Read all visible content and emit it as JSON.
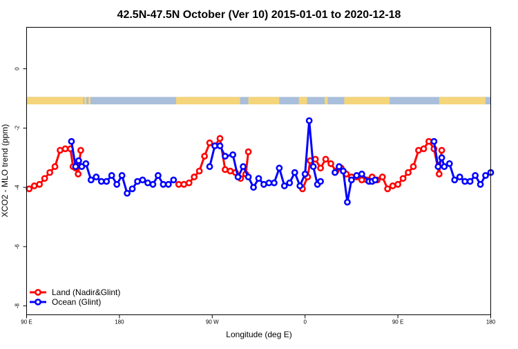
{
  "chart_data": {
    "type": "line",
    "title": "42.5N-47.5N October (Ver 10)   2015-01-01 to 2020-12-18",
    "xlabel": "Longitude (deg E)",
    "ylabel": "XCO2 - MLO trend (ppm)",
    "xlim": [
      90,
      540
    ],
    "ylim": [
      -8.3,
      1.4
    ],
    "x_ticks": [
      {
        "value": 90,
        "label": "90 E"
      },
      {
        "value": 180,
        "label": "180"
      },
      {
        "value": 270,
        "label": "90 W"
      },
      {
        "value": 360,
        "label": "0"
      },
      {
        "value": 450,
        "label": "90 E"
      },
      {
        "value": 540,
        "label": "180"
      }
    ],
    "y_ticks": [
      {
        "value": 0,
        "label": "0"
      },
      {
        "value": -2,
        "label": "-2"
      },
      {
        "value": -4,
        "label": "-4"
      },
      {
        "value": -6,
        "label": "-6"
      },
      {
        "value": -8,
        "label": "-8"
      }
    ],
    "grid": false,
    "legend_position": "bottom-left",
    "surface_strip": {
      "y_range": [
        -1.2,
        -0.95
      ],
      "land_color": "#F5D57A",
      "ocean_color": "#A9BEDB",
      "land_segments": [
        [
          90,
          145
        ],
        [
          146,
          148
        ],
        [
          150,
          152
        ],
        [
          235,
          297
        ],
        [
          305,
          335
        ],
        [
          354,
          362
        ],
        [
          379,
          382
        ],
        [
          398,
          442
        ],
        [
          490,
          535
        ]
      ]
    },
    "series": [
      {
        "name": "Land (Nadir&Glint)",
        "color": "#FF0000",
        "points": [
          [
            92.5,
            -4.05
          ],
          [
            97.5,
            -3.95
          ],
          [
            102.5,
            -3.9
          ],
          [
            107.5,
            -3.7
          ],
          [
            112.5,
            -3.5
          ],
          [
            117.5,
            -3.3
          ],
          [
            122.5,
            -2.75
          ],
          [
            127.5,
            -2.7
          ],
          [
            132.5,
            -2.7
          ],
          [
            135,
            -3.3
          ],
          [
            137.5,
            -3.35
          ],
          [
            140,
            -3.55
          ],
          [
            142.5,
            -2.75
          ],
          null,
          [
            237.5,
            -3.9
          ],
          [
            242.5,
            -3.9
          ],
          [
            247.5,
            -3.85
          ],
          [
            252.5,
            -3.65
          ],
          [
            257.5,
            -3.45
          ],
          [
            262.5,
            -2.95
          ],
          [
            267.5,
            -2.5
          ],
          [
            272.5,
            -2.6
          ],
          [
            277.5,
            -2.35
          ],
          [
            282.5,
            -3.4
          ],
          [
            287.5,
            -3.45
          ],
          [
            292.5,
            -3.5
          ],
          [
            297.5,
            -3.7
          ],
          [
            302.5,
            -3.55
          ],
          [
            305,
            -2.8
          ],
          null,
          [
            357.5,
            -4.05
          ],
          [
            362.5,
            -3.65
          ],
          [
            365,
            -3.1
          ],
          [
            370,
            -3.05
          ],
          [
            375,
            -3.35
          ],
          [
            380,
            -3.05
          ],
          [
            385,
            -3.2
          ],
          [
            390,
            -3.45
          ],
          [
            395,
            -3.35
          ],
          [
            400,
            -3.55
          ],
          [
            405,
            -3.65
          ],
          [
            410,
            -3.65
          ],
          [
            415,
            -3.75
          ],
          [
            420,
            -3.75
          ],
          [
            425,
            -3.65
          ],
          [
            430,
            -3.75
          ],
          [
            435,
            -3.65
          ],
          [
            440,
            -4.05
          ],
          [
            445,
            -3.95
          ],
          [
            450,
            -3.9
          ],
          [
            455,
            -3.7
          ],
          [
            460,
            -3.5
          ],
          [
            465,
            -3.3
          ],
          [
            470,
            -2.75
          ],
          [
            475,
            -2.7
          ],
          [
            480,
            -2.45
          ],
          [
            485,
            -2.7
          ],
          [
            490,
            -3.55
          ],
          [
            492.5,
            -2.75
          ]
        ]
      },
      {
        "name": "Ocean (Glint)",
        "color": "#0000FF",
        "points": [
          [
            133.5,
            -2.45
          ],
          [
            137.5,
            -3.3
          ],
          [
            140.5,
            -3.1
          ],
          [
            143.5,
            -3.3
          ],
          [
            147.5,
            -3.2
          ],
          [
            152.5,
            -3.75
          ],
          [
            157.5,
            -3.65
          ],
          [
            162.5,
            -3.8
          ],
          [
            167.5,
            -3.8
          ],
          [
            172.5,
            -3.6
          ],
          [
            177.5,
            -3.9
          ],
          [
            182.5,
            -3.6
          ],
          [
            187.5,
            -4.2
          ],
          [
            192.5,
            -4.05
          ],
          [
            197.5,
            -3.8
          ],
          [
            202.5,
            -3.75
          ],
          [
            207.5,
            -3.85
          ],
          [
            212.5,
            -3.9
          ],
          [
            217.5,
            -3.6
          ],
          [
            222.5,
            -3.9
          ],
          [
            227.5,
            -3.9
          ],
          [
            232.5,
            -3.75
          ],
          null,
          [
            267.5,
            -3.3
          ],
          [
            272.5,
            -2.6
          ],
          [
            277.5,
            -2.6
          ],
          [
            282.5,
            -2.95
          ],
          [
            290,
            -2.9
          ],
          [
            295,
            -3.65
          ],
          [
            300,
            -3.3
          ],
          [
            305,
            -3.65
          ],
          [
            310,
            -4.0
          ],
          [
            315,
            -3.7
          ],
          [
            320,
            -3.9
          ],
          [
            325,
            -3.85
          ],
          [
            330,
            -3.85
          ],
          [
            335,
            -3.35
          ],
          [
            340,
            -3.95
          ],
          [
            345,
            -3.85
          ],
          [
            350,
            -3.5
          ],
          [
            355,
            -3.95
          ],
          [
            360,
            -3.55
          ],
          [
            364,
            -1.75
          ],
          [
            368,
            -3.3
          ],
          [
            372,
            -3.9
          ],
          [
            375,
            -3.8
          ],
          null,
          [
            389,
            -3.5
          ],
          [
            393,
            -3.3
          ],
          [
            397,
            -3.45
          ],
          [
            401,
            -4.5
          ],
          [
            405,
            -3.75
          ],
          [
            410,
            -3.6
          ],
          [
            415,
            -3.55
          ],
          [
            422,
            -3.8
          ],
          [
            425,
            -3.8
          ],
          [
            428,
            -3.75
          ],
          null,
          [
            485,
            -2.45
          ],
          [
            489,
            -3.3
          ],
          [
            492.5,
            -3.0
          ],
          [
            495,
            -3.3
          ],
          [
            500,
            -3.2
          ],
          [
            505,
            -3.75
          ],
          [
            510,
            -3.65
          ],
          [
            515,
            -3.8
          ],
          [
            520,
            -3.8
          ],
          [
            525,
            -3.6
          ],
          [
            530,
            -3.9
          ],
          [
            535,
            -3.6
          ],
          [
            540,
            -3.5
          ]
        ]
      }
    ]
  }
}
